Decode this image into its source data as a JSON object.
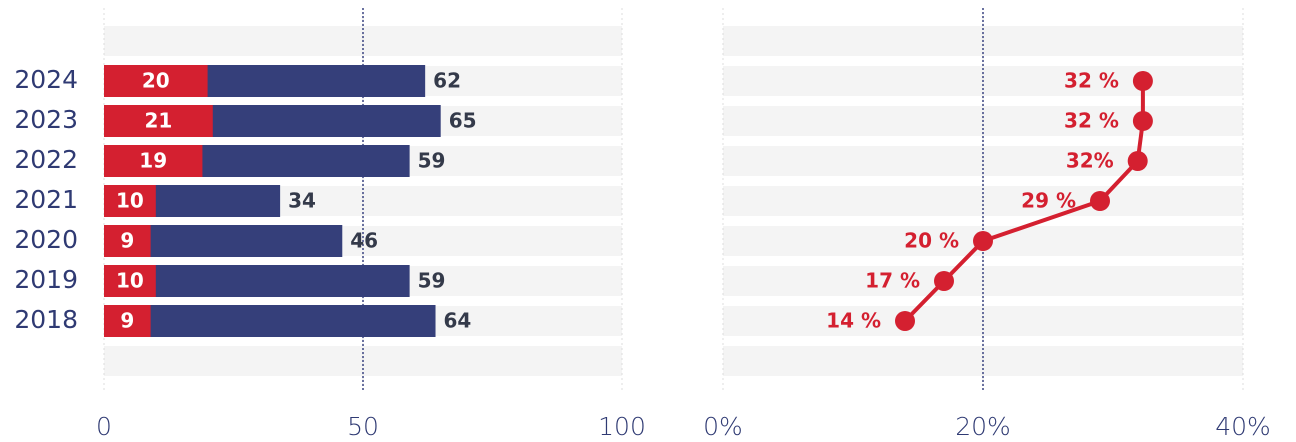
{
  "chart_data": [
    {
      "type": "bar",
      "categories": [
        "2024",
        "2023",
        "2022",
        "2021",
        "2020",
        "2019",
        "2018"
      ],
      "series": [
        {
          "color": "#353f7a",
          "values": [
            62,
            65,
            59,
            34,
            46,
            59,
            64
          ]
        },
        {
          "color": "#d42030",
          "values": [
            20,
            21,
            19,
            10,
            9,
            10,
            9
          ]
        }
      ],
      "xlim": [
        0,
        100
      ],
      "xticks": [
        0,
        50,
        100
      ],
      "reference_line": 50,
      "grid": true
    },
    {
      "type": "line",
      "values": [
        32.3,
        32.3,
        31.9,
        29,
        20,
        17,
        14
      ],
      "value_labels": [
        "32 %",
        "32 %",
        "32%",
        "29 %",
        "20 %",
        "17 %",
        "14 %"
      ],
      "color": "#d42030",
      "xlim": [
        0,
        40
      ],
      "xticks": [
        {
          "value": 0,
          "label": "0%"
        },
        {
          "value": 20,
          "label": "20%"
        },
        {
          "value": 40,
          "label": "40%"
        }
      ],
      "reference_line": 20,
      "grid": true
    }
  ]
}
